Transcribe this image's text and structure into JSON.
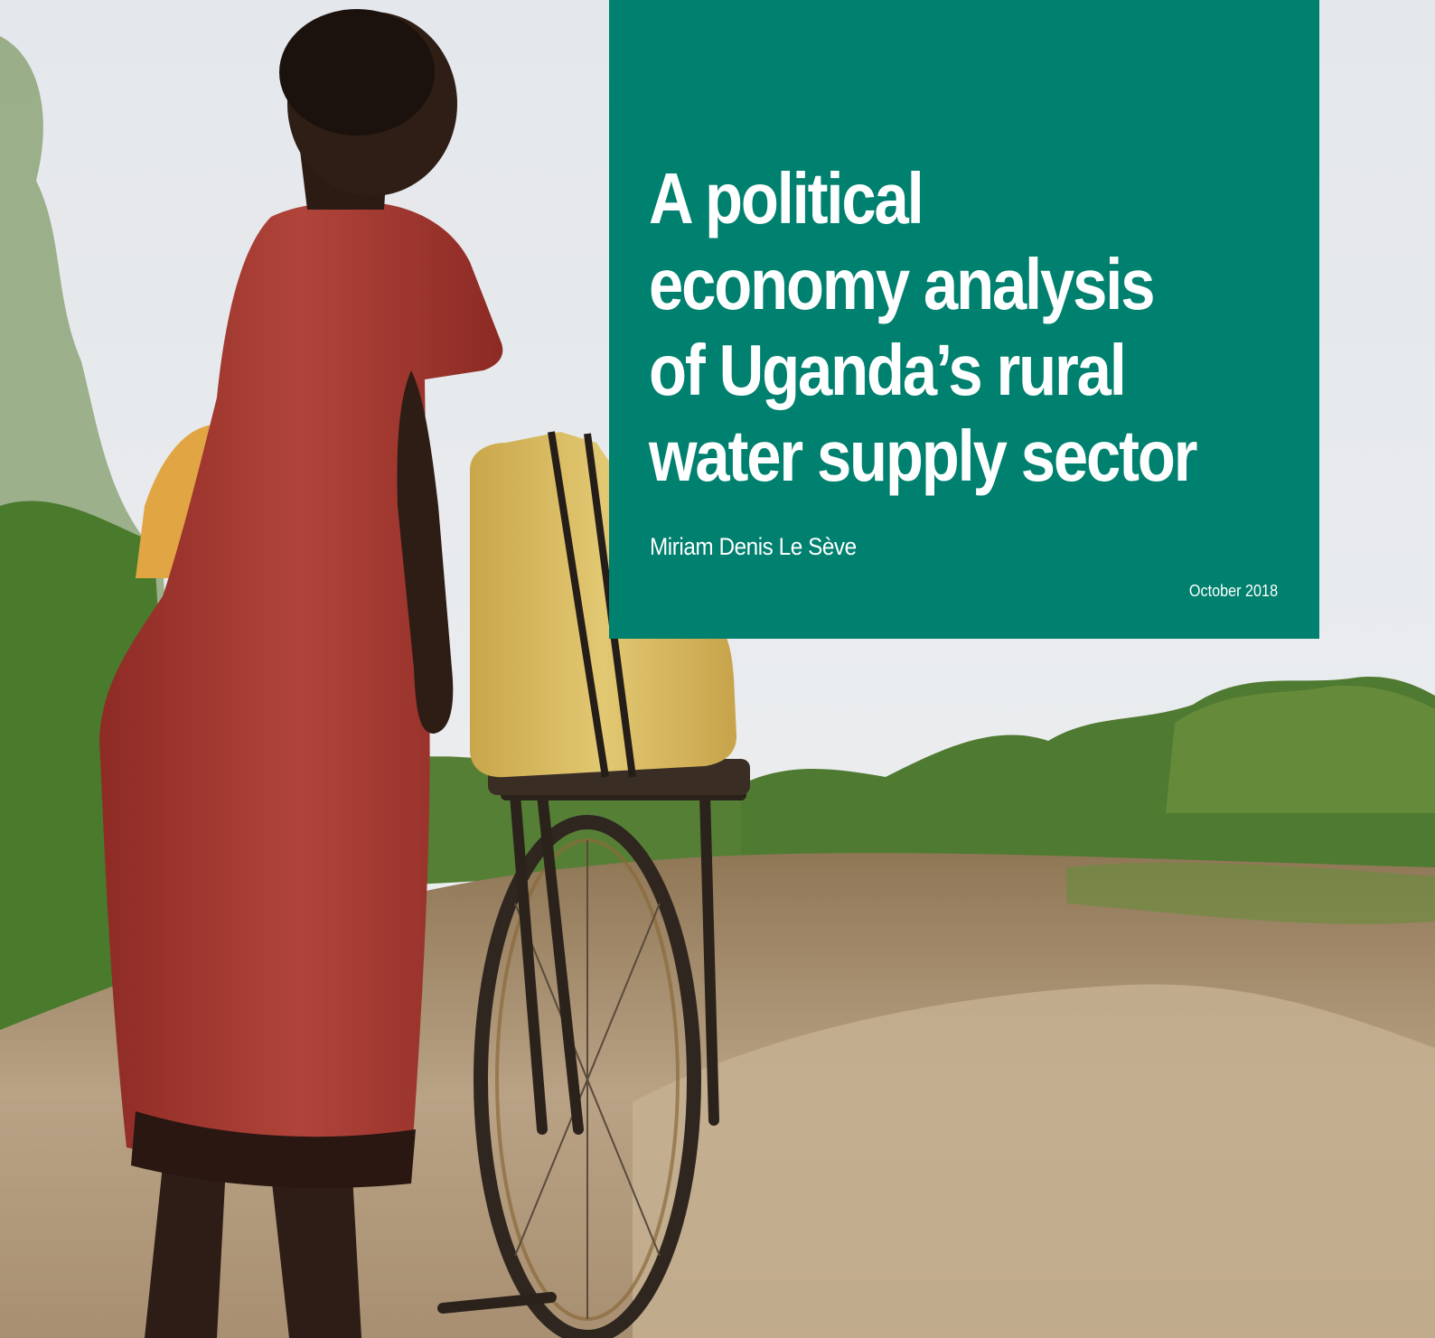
{
  "cover": {
    "title_lines": [
      "A political",
      "economy analysis",
      "of Uganda’s rural",
      "water supply sector"
    ],
    "author": "Miriam Denis Le Sève",
    "date": "October 2018"
  },
  "colors": {
    "panel": "#00806e",
    "text": "#ffffff",
    "dress": "#a2352d",
    "jerrycan": "#d8b95a",
    "sky": "#e8ebee"
  }
}
